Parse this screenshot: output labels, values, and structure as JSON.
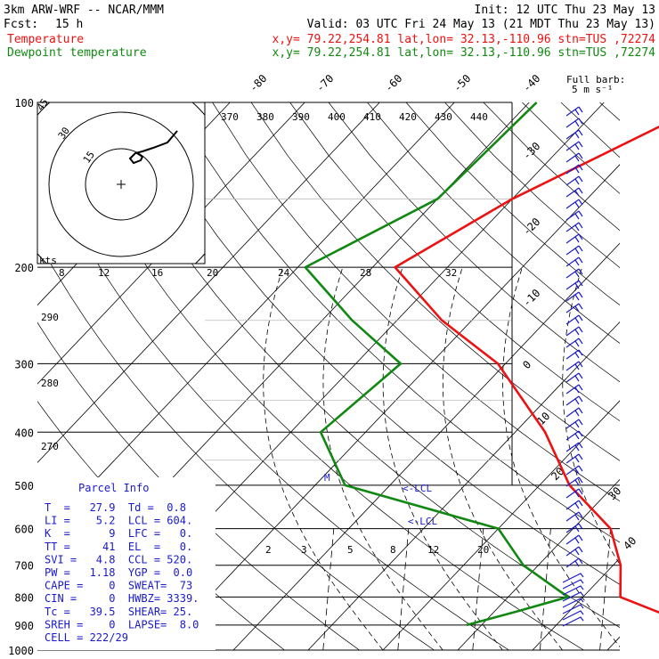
{
  "header": {
    "model": "3km ARW-WRF -- NCAR/MMM",
    "init": "Init: 12 UTC Thu 23 May 13",
    "fcst_label": "Fcst:",
    "fcst_value": "15 h",
    "valid": "Valid: 03 UTC Fri 24 May 13 (21 MDT Thu 23 May 13)",
    "temperature_label": "Temperature",
    "dewpoint_label": "Dewpoint temperature",
    "temperature_info": "x,y= 79.22,254.81   lat,lon= 32.13,-110.96   stn=TUS ,72274",
    "dewpoint_info": "x,y= 79.22,254.81   lat,lon= 32.13,-110.96   stn=TUS ,72274"
  },
  "barb_legend": {
    "line1": "Full barb:",
    "line2": "5 m s⁻¹"
  },
  "colors": {
    "temperature": "#ee1111",
    "dewpoint": "#118811",
    "parcel_info": "#1a1acc",
    "grid": "#000000"
  },
  "chart_data": {
    "type": "line",
    "title": "",
    "y_axis": {
      "label": "",
      "scale": "log",
      "ticks": [
        "100",
        "200",
        "300",
        "400",
        "500",
        "600",
        "700",
        "800",
        "900",
        "1000"
      ]
    },
    "isotherm_labels_top": [
      "-80",
      "-70",
      "-60",
      "-50",
      "-40"
    ],
    "isotherm_labels_right": [
      "-30",
      "-20",
      "-10",
      "0",
      "10",
      "20",
      "30",
      "40"
    ],
    "theta_e_labels": [
      "370",
      "380",
      "390",
      "400",
      "410",
      "420",
      "430",
      "440"
    ],
    "dry_adiabat_labels": [
      "290",
      "280",
      "270"
    ],
    "mixing_ratio_labels": [
      "2",
      "3",
      "5",
      "8",
      "12",
      "20"
    ],
    "lcl_labels": [
      "<-LCL",
      "<-LCL"
    ],
    "lfc_label": "M",
    "series": [
      {
        "name": "Temperature",
        "unit": "C",
        "points": [
          [
            100,
            -36
          ],
          [
            150,
            -50
          ],
          [
            200,
            -57
          ],
          [
            250,
            -44
          ],
          [
            300,
            -31
          ],
          [
            400,
            -16
          ],
          [
            500,
            -6
          ],
          [
            600,
            5
          ],
          [
            700,
            11
          ],
          [
            800,
            15
          ],
          [
            900,
            28
          ]
        ]
      },
      {
        "name": "Dewpoint temperature",
        "unit": "C",
        "points": [
          [
            100,
            -59
          ],
          [
            150,
            -60
          ],
          [
            200,
            -69
          ],
          [
            250,
            -56
          ],
          [
            300,
            -44
          ],
          [
            400,
            -46
          ],
          [
            500,
            -36
          ],
          [
            600,
            -10
          ],
          [
            700,
            -2
          ],
          [
            800,
            8
          ],
          [
            850,
            3
          ],
          [
            900,
            -2
          ]
        ]
      }
    ]
  },
  "hodograph": {
    "speed_axis_label": "kts",
    "ring_labels": [
      "45",
      "30",
      "15"
    ],
    "speed_ticks": [
      "8",
      "12",
      "16",
      "20",
      "24",
      "28",
      "32"
    ]
  },
  "parcel_info": {
    "title": "Parcel Info",
    "rows": [
      "T  =   27.9  Td =  0.8",
      "LI =    5.2  LCL = 604.",
      "K  =      9  LFC =   0.",
      "TT =     41  EL  =   0.",
      "SVI =   4.8  CCL = 520.",
      "PW =   1.18  YGP =  0.0",
      "CAPE =    0  SWEAT=  73",
      "CIN =     0  HWBZ= 3339.",
      "Tc =   39.5  SHEAR= 25.",
      "SREH =    0  LAPSE=  8.0",
      "CELL = 222/29"
    ]
  }
}
